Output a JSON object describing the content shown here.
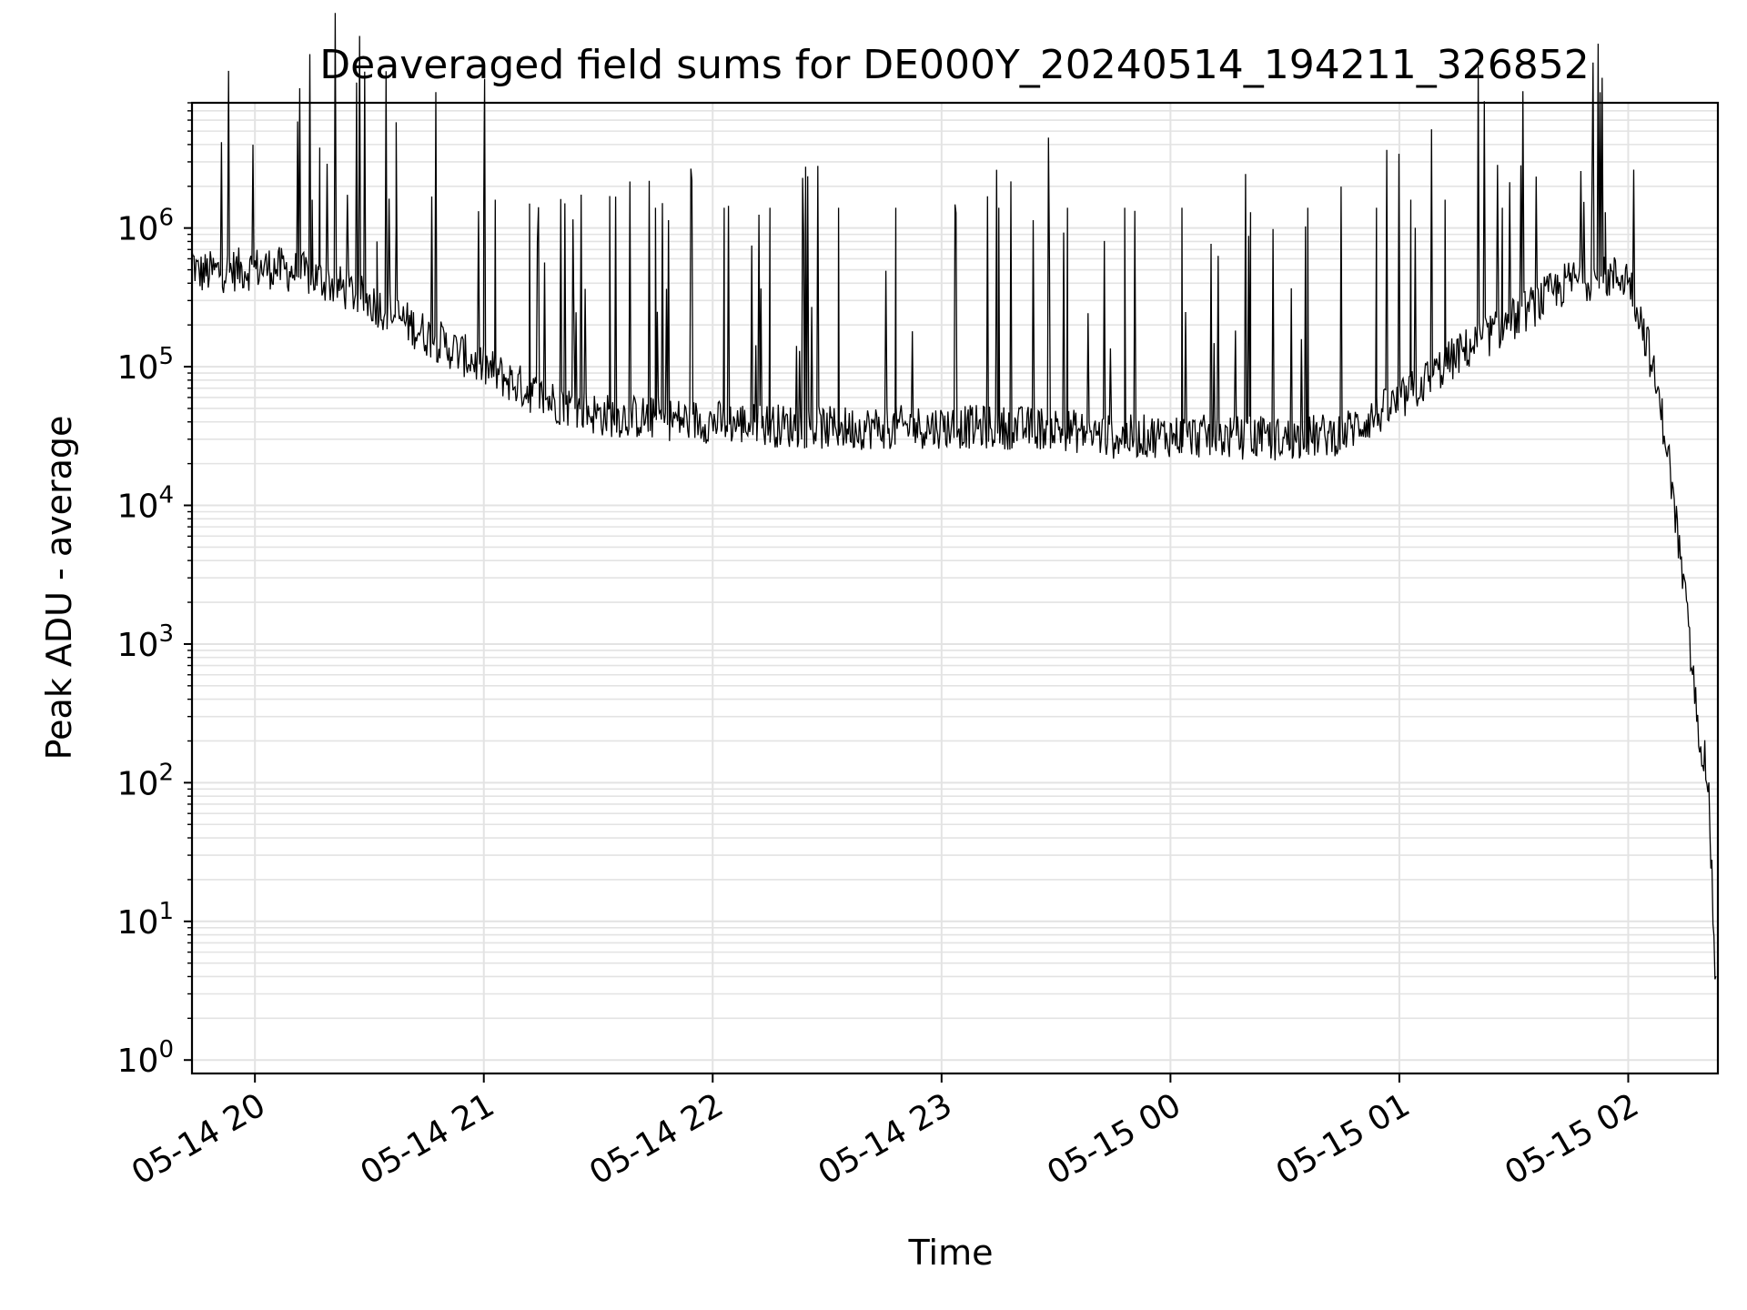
{
  "chart_data": {
    "type": "line",
    "title": "Deaveraged field sums for DE000Y_20240514_194211_326852",
    "xlabel": "Time",
    "ylabel": "Peak ADU - average",
    "y_scale": "log",
    "ylim": [
      0.8,
      8000000
    ],
    "xlim": [
      "2024-05-14 19:43:30",
      "2024-05-15 02:23:30"
    ],
    "grid": true,
    "x_ticks": [
      {
        "value": "2024-05-14 20:00",
        "label": "05-14 20"
      },
      {
        "value": "2024-05-14 21:00",
        "label": "05-14 21"
      },
      {
        "value": "2024-05-14 22:00",
        "label": "05-14 22"
      },
      {
        "value": "2024-05-14 23:00",
        "label": "05-14 23"
      },
      {
        "value": "2024-05-15 00:00",
        "label": "05-15 00"
      },
      {
        "value": "2024-05-15 01:00",
        "label": "05-15 01"
      },
      {
        "value": "2024-05-15 02:00",
        "label": "05-15 02"
      }
    ],
    "y_ticks": [
      {
        "value": 1,
        "base": "10",
        "exp": "0"
      },
      {
        "value": 10,
        "base": "10",
        "exp": "1"
      },
      {
        "value": 100,
        "base": "10",
        "exp": "2"
      },
      {
        "value": 1000,
        "base": "10",
        "exp": "3"
      },
      {
        "value": 10000,
        "base": "10",
        "exp": "4"
      },
      {
        "value": 100000,
        "base": "10",
        "exp": "5"
      },
      {
        "value": 1000000,
        "base": "10",
        "exp": "6"
      }
    ],
    "series": [
      {
        "color": "#000000",
        "baseline": [
          [
            "2024-05-14 19:43:30",
            600000
          ],
          [
            "2024-05-14 19:45:00",
            470000
          ],
          [
            "2024-05-14 19:55:00",
            500000
          ],
          [
            "2024-05-14 20:05:00",
            520000
          ],
          [
            "2024-05-14 20:15:00",
            450000
          ],
          [
            "2024-05-14 20:25:00",
            350000
          ],
          [
            "2024-05-14 20:35:00",
            250000
          ],
          [
            "2024-05-14 20:45:00",
            170000
          ],
          [
            "2024-05-14 21:00:00",
            100000
          ],
          [
            "2024-05-14 21:15:00",
            60000
          ],
          [
            "2024-05-14 21:30:00",
            45000
          ],
          [
            "2024-05-14 22:00:00",
            40000
          ],
          [
            "2024-05-14 22:30:00",
            36000
          ],
          [
            "2024-05-14 23:00:00",
            37000
          ],
          [
            "2024-05-14 23:30:00",
            36000
          ],
          [
            "2024-05-14 23:45:00",
            31000
          ],
          [
            "2024-05-15 00:00:00",
            32000
          ],
          [
            "2024-05-15 00:30:00",
            30000
          ],
          [
            "2024-05-15 00:45:00",
            33000
          ],
          [
            "2024-05-15 01:00:00",
            55000
          ],
          [
            "2024-05-15 01:15:00",
            120000
          ],
          [
            "2024-05-15 01:30:00",
            220000
          ],
          [
            "2024-05-15 01:45:00",
            420000
          ],
          [
            "2024-05-15 02:00:00",
            450000
          ],
          [
            "2024-05-15 02:05:00",
            150000
          ],
          [
            "2024-05-15 02:10:00",
            30000
          ],
          [
            "2024-05-15 02:15:00",
            2000
          ],
          [
            "2024-05-15 02:18:00",
            300
          ],
          [
            "2024-05-15 02:21:00",
            100
          ],
          [
            "2024-05-15 02:23:00",
            3
          ]
        ],
        "spikes": [
          [
            "2024-05-14 20:15:00",
            1600000
          ],
          [
            "2024-05-14 20:17:00",
            3800000
          ],
          [
            "2024-05-14 20:32:00",
            800000
          ],
          [
            "2024-05-14 20:37:00",
            1000000
          ],
          [
            "2024-05-14 21:00:00",
            1500000
          ],
          [
            "2024-05-14 21:03:00",
            1600000
          ],
          [
            "2024-05-14 21:12:00",
            1500000
          ],
          [
            "2024-05-14 21:33:00",
            1700000
          ],
          [
            "2024-05-14 21:45:00",
            1400000
          ],
          [
            "2024-05-14 22:03:00",
            1400000
          ],
          [
            "2024-05-14 22:15:00",
            1400000
          ],
          [
            "2024-05-14 22:33:00",
            1400000
          ],
          [
            "2024-05-14 22:48:00",
            1400000
          ],
          [
            "2024-05-14 23:15:00",
            1400000
          ],
          [
            "2024-05-14 23:33:00",
            1400000
          ],
          [
            "2024-05-14 23:48:00",
            1400000
          ],
          [
            "2024-05-15 00:03:00",
            1400000
          ],
          [
            "2024-05-15 00:21:00",
            1300000
          ],
          [
            "2024-05-15 00:36:00",
            1400000
          ],
          [
            "2024-05-15 00:54:00",
            1400000
          ],
          [
            "2024-05-15 01:03:00",
            1600000
          ],
          [
            "2024-05-15 01:12:00",
            1600000
          ],
          [
            "2024-05-15 01:27:00",
            1400000
          ],
          [
            "2024-05-15 01:54:00",
            1300000
          ]
        ]
      }
    ]
  }
}
